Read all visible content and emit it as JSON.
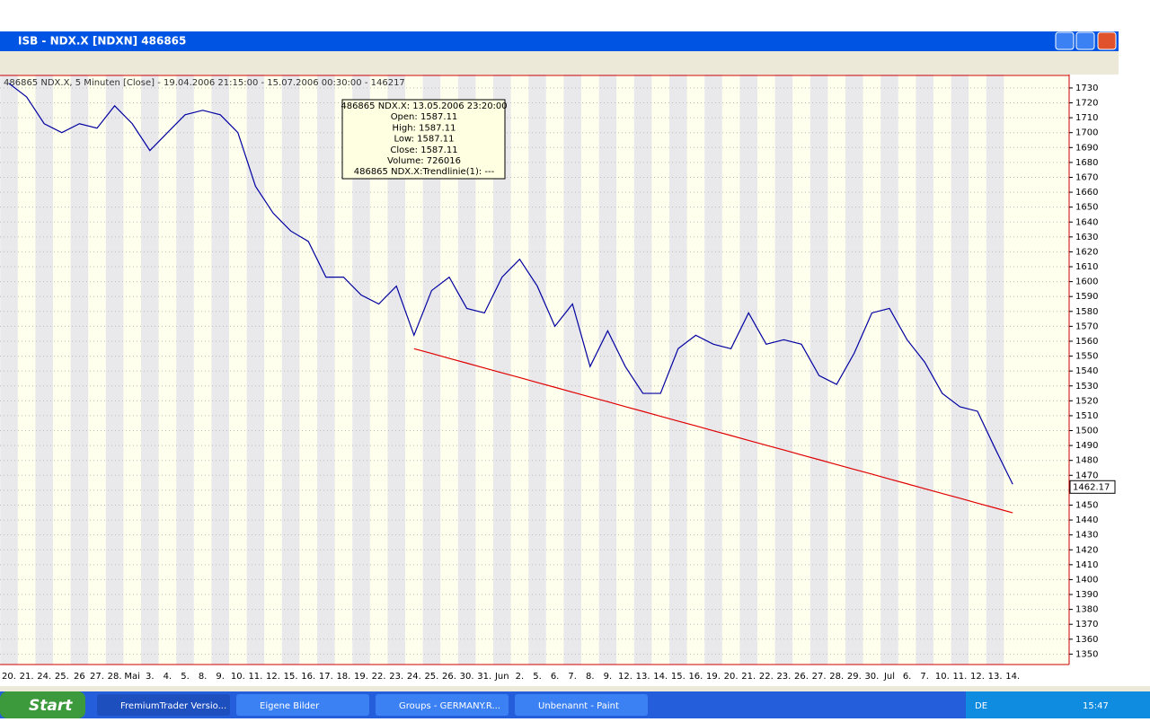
{
  "window": {
    "title": "ISB - NDX.X [NDXN] 486865"
  },
  "chart_data": {
    "type": "line",
    "title": "486865 NDX.X, 5 Minuten [Close] - 19.04.2006 21:15:00 - 15.07.2006 00:30:00 - 146217",
    "categories": [
      "20.",
      "21.",
      "24.",
      "25.",
      "26",
      "27.",
      "28.",
      "Mai",
      "3.",
      "4.",
      "5.",
      "8.",
      "9.",
      "10.",
      "11.",
      "12.",
      "15.",
      "16.",
      "17.",
      "18.",
      "19.",
      "22.",
      "23.",
      "24.",
      "25.",
      "26.",
      "30.",
      "31.",
      "Jun",
      "2.",
      "5.",
      "6.",
      "7.",
      "8.",
      "9.",
      "12.",
      "13.",
      "14.",
      "15.",
      "16.",
      "19.",
      "20.",
      "21.",
      "22.",
      "23.",
      "26.",
      "27.",
      "28.",
      "29.",
      "30.",
      "Jul",
      "6.",
      "7.",
      "10.",
      "11.",
      "12.",
      "13.",
      "14."
    ],
    "series": [
      {
        "name": "486865 NDX.X",
        "color": "#0000a0",
        "values": [
          1733,
          1724,
          1706,
          1700,
          1706,
          1703,
          1718,
          1706,
          1688,
          1700,
          1712,
          1715,
          1712,
          1700,
          1664,
          1646,
          1634,
          1627,
          1603,
          1603,
          1591,
          1585,
          1597,
          1564,
          1594,
          1603,
          1582,
          1579,
          1603,
          1615,
          1597,
          1570,
          1585,
          1543,
          1567,
          1543,
          1525,
          1525,
          1555,
          1564,
          1558,
          1555,
          1579,
          1558,
          1561,
          1558,
          1537,
          1531,
          1552,
          1579,
          1582,
          1561,
          1546,
          1525,
          1516,
          1513,
          1488,
          1464
        ]
      },
      {
        "name": "Trendlinie(1)",
        "color": "#e00000",
        "values": [
          null,
          null,
          null,
          null,
          null,
          null,
          null,
          null,
          null,
          null,
          null,
          null,
          null,
          null,
          null,
          null,
          null,
          null,
          null,
          null,
          null,
          null,
          null,
          1555,
          1551.8,
          1548.5,
          1545.3,
          1542.0,
          1538.8,
          1535.6,
          1532.3,
          1529.1,
          1525.8,
          1522.6,
          1519.4,
          1516.1,
          1512.9,
          1509.6,
          1506.4,
          1503.2,
          1499.9,
          1496.7,
          1493.4,
          1490.2,
          1487.0,
          1483.7,
          1480.5,
          1477.2,
          1474.0,
          1470.8,
          1467.5,
          1464.3,
          1461.0,
          1457.8,
          1454.6,
          1451.3,
          1448.1,
          1444.8
        ]
      }
    ],
    "last_value": 1462.17,
    "ylim": [
      1343,
      1739
    ],
    "yticks": [
      1350,
      1360,
      1370,
      1380,
      1390,
      1400,
      1410,
      1420,
      1430,
      1440,
      1450,
      1460,
      1470,
      1480,
      1490,
      1500,
      1510,
      1520,
      1530,
      1540,
      1550,
      1560,
      1570,
      1580,
      1590,
      1600,
      1610,
      1620,
      1630,
      1640,
      1650,
      1660,
      1670,
      1680,
      1690,
      1700,
      1710,
      1720,
      1730
    ],
    "grid": true,
    "tooltip": [
      "486865 NDX.X: 13.05.2006 23:20:00",
      "Open: 1587.11",
      "High: 1587.11",
      "Low: 1587.11",
      "Close: 1587.11",
      "Volume: 726016",
      "486865 NDX.X:Trendlinie(1): ---"
    ]
  },
  "taskbar": {
    "start": "Start",
    "items": [
      "FremiumTrader Versio...",
      "Eigene Bilder",
      "Groups - GERMANY.R...",
      "Unbenannt - Paint"
    ],
    "language": "DE",
    "clock": "15:47"
  }
}
